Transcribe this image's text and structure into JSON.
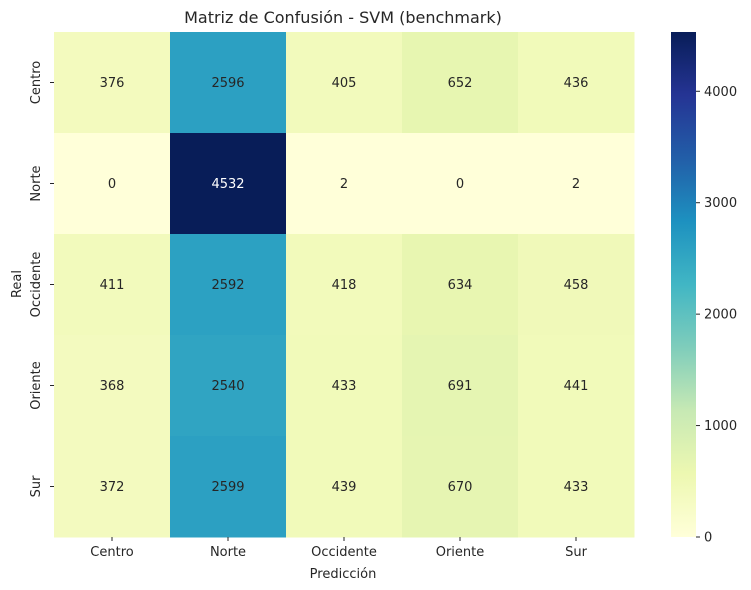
{
  "chart_data": {
    "type": "heatmap",
    "title": "Matriz de Confusión - SVM (benchmark)",
    "xlabel": "Predicción",
    "ylabel": "Real",
    "x_categories": [
      "Centro",
      "Norte",
      "Occidente",
      "Oriente",
      "Sur"
    ],
    "y_categories": [
      "Centro",
      "Norte",
      "Occidente",
      "Oriente",
      "Sur"
    ],
    "values": [
      [
        376,
        2596,
        405,
        652,
        436
      ],
      [
        0,
        4532,
        2,
        0,
        2
      ],
      [
        411,
        2592,
        418,
        634,
        458
      ],
      [
        368,
        2540,
        433,
        691,
        441
      ],
      [
        372,
        2599,
        439,
        670,
        433
      ]
    ],
    "colormap": "YlGnBu",
    "vmin": 0,
    "vmax": 4532,
    "colorbar_ticks": [
      "0",
      "1000",
      "2000",
      "3000",
      "4000"
    ]
  }
}
